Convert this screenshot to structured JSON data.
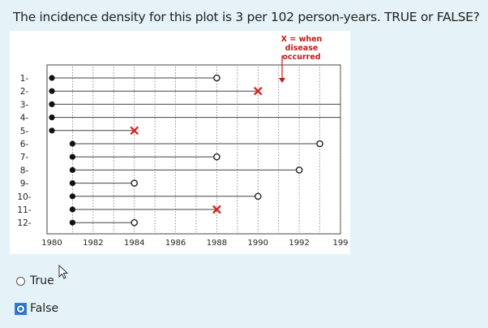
{
  "question": {
    "text": "The incidence density for this plot is 3 per 102 person-years. TRUE or FALSE?"
  },
  "chart_data": {
    "type": "scatter",
    "x_ticks": [
      "1980",
      "1982",
      "1984",
      "1986",
      "1988",
      "1990",
      "1992",
      "199"
    ],
    "x_range": [
      1980,
      1994
    ],
    "row_labels": [
      "1-",
      "2-",
      "3-",
      "4-",
      "5-",
      "6-",
      "7-",
      "8-",
      "9-",
      "10-",
      "11-",
      "12-"
    ],
    "legend": {
      "lines": [
        "X = when",
        "disease",
        "occurred"
      ],
      "color": "#c21818"
    },
    "subjects": [
      {
        "label": "1-",
        "start": 1980,
        "end": 1988,
        "outcome": "censored"
      },
      {
        "label": "2-",
        "start": 1980,
        "end": 1990,
        "outcome": "disease"
      },
      {
        "label": "3-",
        "start": 1980,
        "end": 1994,
        "outcome": "ongoing"
      },
      {
        "label": "4-",
        "start": 1980,
        "end": 1994,
        "outcome": "ongoing"
      },
      {
        "label": "5-",
        "start": 1980,
        "end": 1984,
        "outcome": "disease"
      },
      {
        "label": "6-",
        "start": 1981,
        "end": 1993,
        "outcome": "censored"
      },
      {
        "label": "7-",
        "start": 1981,
        "end": 1988,
        "outcome": "censored"
      },
      {
        "label": "8-",
        "start": 1981,
        "end": 1992,
        "outcome": "censored"
      },
      {
        "label": "9-",
        "start": 1981,
        "end": 1984,
        "outcome": "censored"
      },
      {
        "label": "10-",
        "start": 1981,
        "end": 1990,
        "outcome": "censored"
      },
      {
        "label": "11-",
        "start": 1981,
        "end": 1988,
        "outcome": "disease"
      },
      {
        "label": "12-",
        "start": 1981,
        "end": 1984,
        "outcome": "censored"
      }
    ]
  },
  "options": [
    {
      "label": "True",
      "selected": false
    },
    {
      "label": "False",
      "selected": true
    }
  ]
}
